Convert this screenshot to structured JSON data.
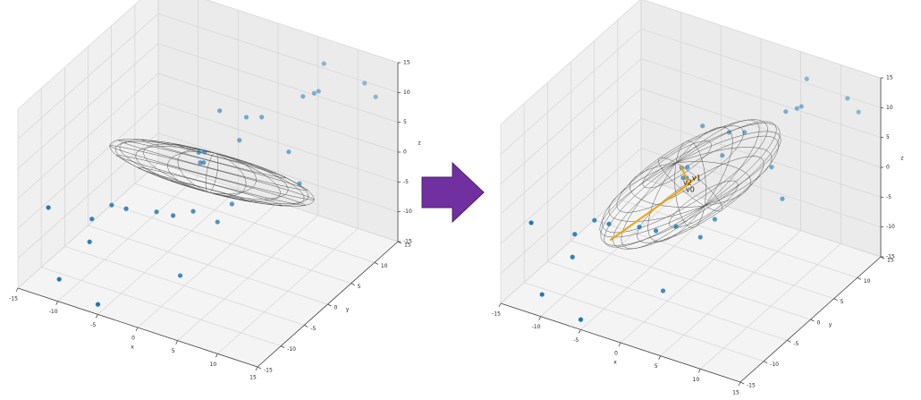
{
  "chart_data": [
    {
      "type": "scatter3d",
      "xlabel": "x",
      "ylabel": "y",
      "zlabel": "z",
      "color": "#1f77b4",
      "x": [
        6.5,
        11.3,
        7,
        6.8,
        12.8,
        6.1,
        -2.8,
        0.3,
        1.7,
        0.2,
        -3.2,
        -2.7,
        5.9,
        -2,
        -1.7,
        8.3,
        3.3,
        -11.3,
        -7.6,
        -5.9,
        -8.9,
        -2.8,
        -0.9,
        0.5,
        2.9,
        -8.6,
        0.4,
        -10.3,
        -5.1
      ],
      "y": [
        13.7,
        14.2,
        11.7,
        11.1,
        14,
        9.9,
        7.3,
        7.7,
        8.6,
        6.4,
        3.5,
        3.9,
        7.2,
        1.8,
        2,
        5.4,
        -0.5,
        -14.8,
        -7.6,
        -7.4,
        -9.6,
        -6.2,
        -5.9,
        -4,
        -2.9,
        -10.6,
        -6.6,
        -14.2,
        -14.8
      ],
      "z": [
        12,
        10.5,
        9,
        9,
        9,
        9,
        4.5,
        4.5,
        4.5,
        1.5,
        0,
        0,
        1.5,
        0,
        0,
        -1.5,
        -3,
        0,
        -3,
        -3,
        -4.5,
        -3,
        -3,
        -3,
        -4.5,
        -7.5,
        -12,
        -12,
        -13.5
      ],
      "xlim": [
        -15,
        15
      ],
      "ylim": [
        -15,
        15
      ],
      "zlim": [
        -15,
        15
      ],
      "xticks": [
        -15,
        -10,
        -5,
        0,
        5,
        10,
        15
      ],
      "yticks": [
        -15,
        -10,
        -5,
        0,
        5,
        10,
        15
      ],
      "zticks": [
        -15,
        -10,
        -5,
        0,
        5,
        10,
        15
      ],
      "grid": true
    },
    {
      "type": "scatter3d",
      "xlabel": "x",
      "ylabel": "y",
      "zlabel": "z",
      "color": "#1f77b4",
      "x": [
        6.5,
        11.3,
        7,
        6.8,
        12.8,
        6.1,
        -2.8,
        0.3,
        1.7,
        0.2,
        -3.2,
        -2.7,
        5.9,
        -2,
        -1.7,
        8.3,
        3.3,
        -11.3,
        -7.6,
        -5.9,
        -8.9,
        -2.8,
        -0.9,
        0.5,
        2.9,
        -8.6,
        0.4,
        -10.3,
        -5.1
      ],
      "y": [
        13.7,
        14.2,
        11.7,
        11.1,
        14,
        9.9,
        7.3,
        7.7,
        8.6,
        6.4,
        3.5,
        3.9,
        7.2,
        1.8,
        2,
        5.4,
        -0.5,
        -14.8,
        -7.6,
        -7.4,
        -9.6,
        -6.2,
        -5.9,
        -4,
        -2.9,
        -10.6,
        -6.6,
        -14.2,
        -14.8
      ],
      "z": [
        12,
        10.5,
        9,
        9,
        9,
        9,
        4.5,
        4.5,
        4.5,
        1.5,
        0,
        0,
        1.5,
        0,
        0,
        -1.5,
        -3,
        0,
        -3,
        -3,
        -4.5,
        -3,
        -3,
        -3,
        -4.5,
        -7.5,
        -12,
        -12,
        -13.5
      ],
      "xlim": [
        -15,
        15
      ],
      "ylim": [
        -15,
        15
      ],
      "zlim": [
        -15,
        15
      ],
      "xticks": [
        -15,
        -10,
        -5,
        0,
        5,
        10,
        15
      ],
      "yticks": [
        -15,
        -10,
        -5,
        0,
        5,
        10,
        15
      ],
      "zticks": [
        -15,
        -10,
        -5,
        0,
        5,
        10,
        15
      ],
      "grid": true,
      "annotations": [
        "v1",
        "v2",
        "v0"
      ]
    }
  ]
}
